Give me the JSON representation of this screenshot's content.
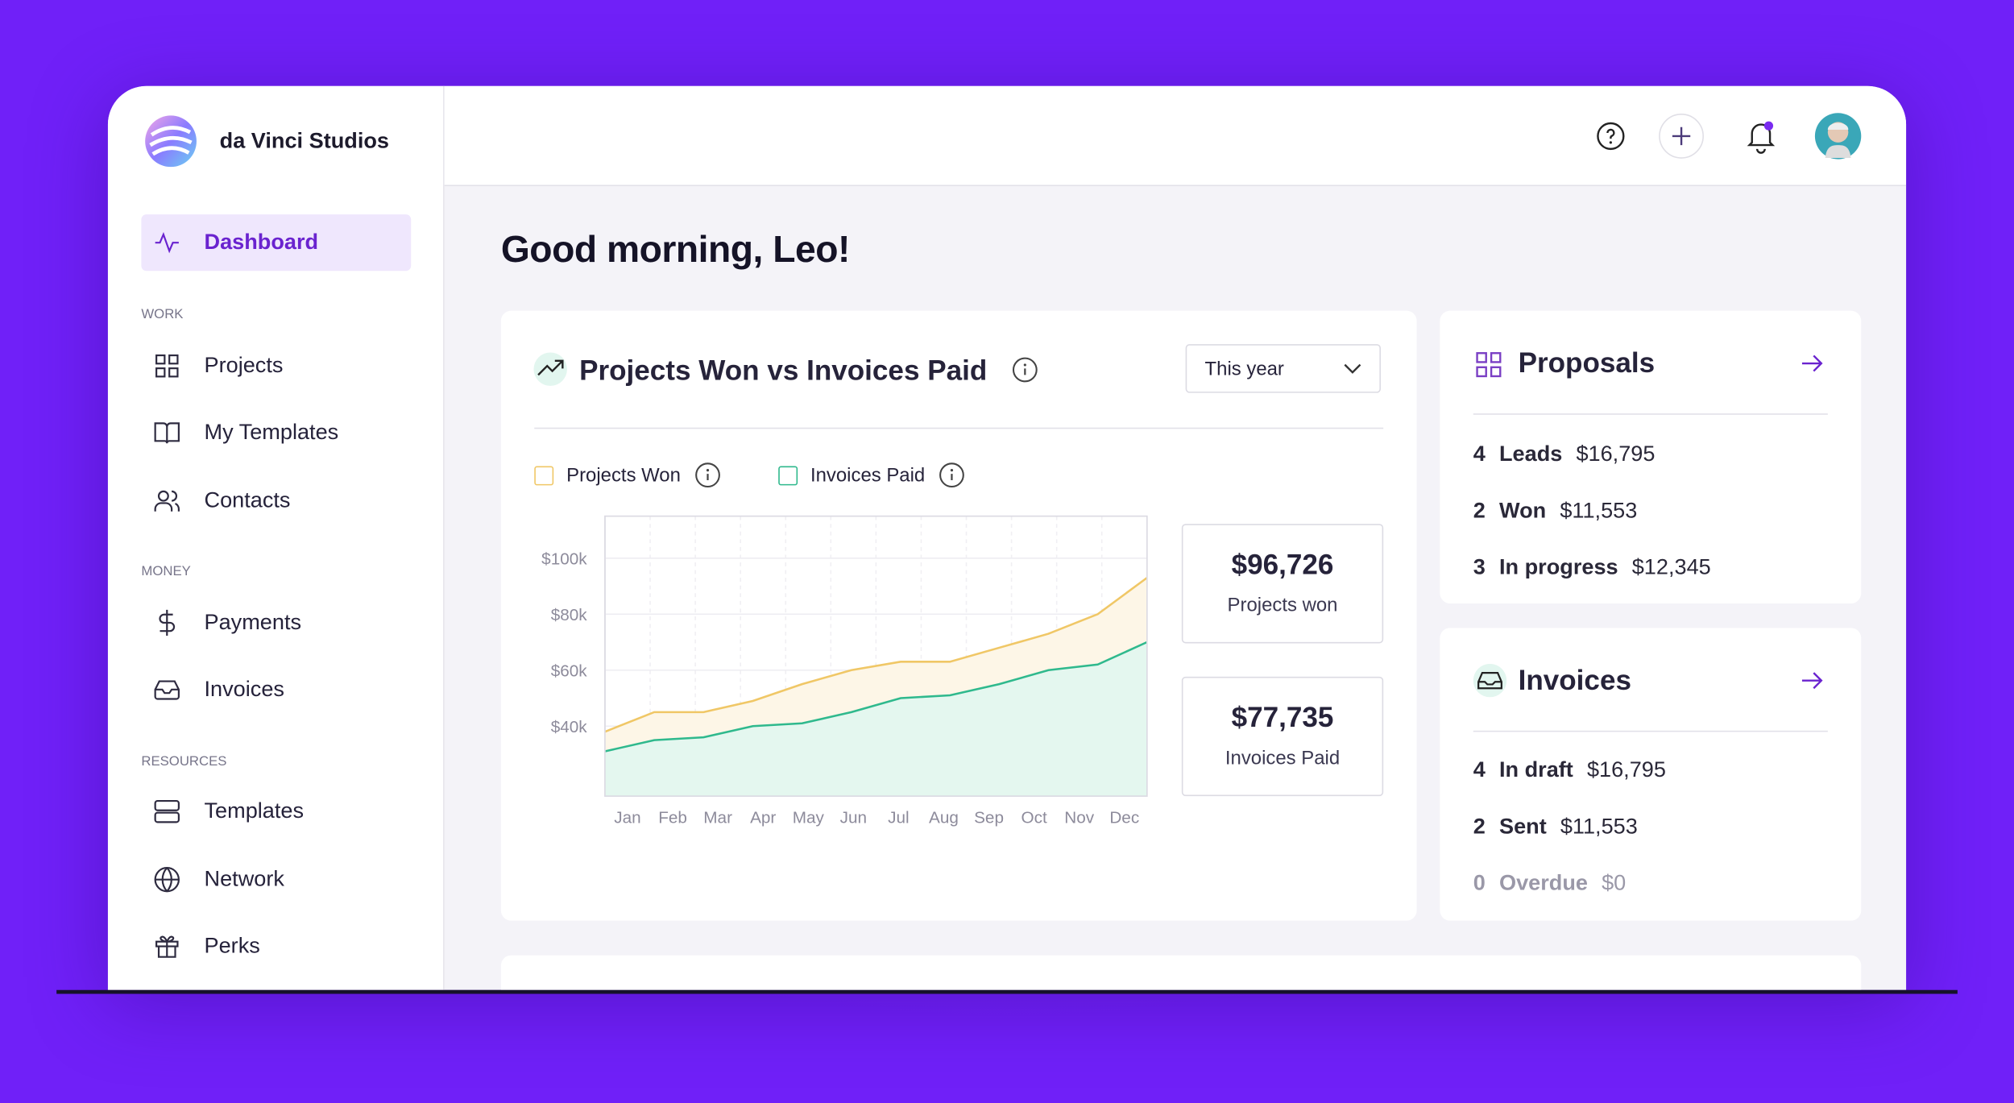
{
  "brand": "da Vinci Studios",
  "nav": {
    "active": "Dashboard",
    "sections": [
      {
        "title": "WORK",
        "items": [
          "Projects",
          "My Templates",
          "Contacts"
        ]
      },
      {
        "title": "MONEY",
        "items": [
          "Payments",
          "Invoices"
        ]
      },
      {
        "title": "RESOURCES",
        "items": [
          "Templates",
          "Network",
          "Perks"
        ]
      }
    ]
  },
  "greeting": "Good morning, Leo!",
  "chart_card": {
    "title": "Projects Won vs Invoices Paid",
    "period": "This year",
    "totals": [
      {
        "value": "$96,726",
        "label": "Projects won"
      },
      {
        "value": "$77,735",
        "label": "Invoices Paid"
      }
    ]
  },
  "chart_data": {
    "type": "line",
    "area": true,
    "categories": [
      "Jan",
      "Feb",
      "Mar",
      "Apr",
      "May",
      "Jun",
      "Jul",
      "Aug",
      "Sep",
      "Oct",
      "Nov",
      "Dec"
    ],
    "series": [
      {
        "name": "Projects Won",
        "color": "#f0c766",
        "fill": "#fdf6e7",
        "values": [
          38000,
          45000,
          45000,
          49000,
          55000,
          60000,
          63000,
          63000,
          68000,
          73000,
          80000,
          93000
        ]
      },
      {
        "name": "Invoices Paid",
        "color": "#2fb98d",
        "fill": "#e4f7ef",
        "values": [
          31000,
          35000,
          36000,
          40000,
          41000,
          45000,
          50000,
          51000,
          55000,
          60000,
          62000,
          70000
        ]
      }
    ],
    "ylim": [
      15000,
      115000
    ],
    "yticks": [
      {
        "value": 40000,
        "label": "$40k"
      },
      {
        "value": 60000,
        "label": "$60k"
      },
      {
        "value": 80000,
        "label": "$80k"
      },
      {
        "value": 100000,
        "label": "$100k"
      }
    ],
    "grid": true
  },
  "proposals": {
    "title": "Proposals",
    "rows": [
      {
        "count": "4",
        "label": "Leads",
        "amount": "$16,795"
      },
      {
        "count": "2",
        "label": "Won",
        "amount": "$11,553"
      },
      {
        "count": "3",
        "label": "In progress",
        "amount": "$12,345"
      }
    ]
  },
  "invoices": {
    "title": "Invoices",
    "rows": [
      {
        "count": "4",
        "label": "In draft",
        "amount": "$16,795"
      },
      {
        "count": "2",
        "label": "Sent",
        "amount": "$11,553"
      },
      {
        "count": "0",
        "label": "Overdue",
        "amount": "$0"
      }
    ]
  }
}
